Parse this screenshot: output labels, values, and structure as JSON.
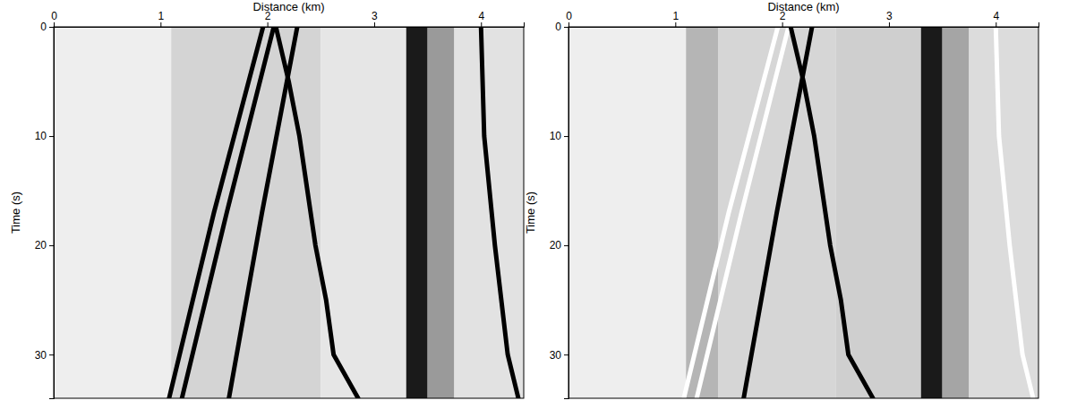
{
  "chart_data": [
    {
      "type": "image",
      "x_label": "Distance (km)",
      "y_label": "Time (s)",
      "xlim": [
        0,
        4.4
      ],
      "ylim": [
        34,
        0
      ],
      "xticks": [
        0,
        1,
        2,
        3,
        4
      ],
      "yticks": [
        0,
        10,
        20,
        30
      ],
      "bands": [
        {
          "x0": 0,
          "x1": 1.1,
          "color": "#eeeeee"
        },
        {
          "x0": 1.1,
          "x1": 2.5,
          "color": "#d4d4d4"
        },
        {
          "x0": 2.5,
          "x1": 3.3,
          "color": "#e6e6e6"
        },
        {
          "x0": 3.3,
          "x1": 3.5,
          "color": "#1a1a1a"
        },
        {
          "x0": 3.5,
          "x1": 3.75,
          "color": "#9a9a9a"
        },
        {
          "x0": 3.75,
          "x1": 4.4,
          "color": "#e2e2e2"
        }
      ],
      "series": [
        {
          "color": "#000000",
          "x": [
            1.96,
            1.5,
            1.08
          ],
          "values": [
            0,
            17,
            34
          ]
        },
        {
          "color": "#000000",
          "x": [
            2.06,
            1.62,
            1.2
          ],
          "values": [
            0,
            17,
            34
          ]
        },
        {
          "color": "#000000",
          "x": [
            2.28,
            1.95,
            1.64
          ],
          "values": [
            0,
            17,
            34
          ]
        },
        {
          "color": "#000000",
          "x": [
            2.08,
            2.2,
            2.3,
            2.45,
            2.55,
            2.62,
            2.85
          ],
          "values": [
            0,
            5,
            10,
            20,
            25,
            30,
            34
          ]
        },
        {
          "color": "#000000",
          "x": [
            4.0,
            4.03,
            4.13,
            4.25,
            4.35
          ],
          "values": [
            0,
            10,
            20,
            30,
            34
          ]
        }
      ]
    },
    {
      "type": "image",
      "x_label": "Distance (km)",
      "y_label": "Time (s)",
      "xlim": [
        0,
        4.4
      ],
      "ylim": [
        34,
        0
      ],
      "xticks": [
        0,
        1,
        2,
        3,
        4
      ],
      "yticks": [
        0,
        10,
        20,
        30
      ],
      "bands": [
        {
          "x0": 0,
          "x1": 1.1,
          "color": "#eeeeee"
        },
        {
          "x0": 1.1,
          "x1": 1.4,
          "color": "#b5b5b5"
        },
        {
          "x0": 1.4,
          "x1": 2.5,
          "color": "#d6d6d6"
        },
        {
          "x0": 2.5,
          "x1": 3.3,
          "color": "#cfcfcf"
        },
        {
          "x0": 3.3,
          "x1": 3.5,
          "color": "#1a1a1a"
        },
        {
          "x0": 3.5,
          "x1": 3.75,
          "color": "#a5a5a5"
        },
        {
          "x0": 3.75,
          "x1": 4.4,
          "color": "#dcdcdc"
        }
      ],
      "series": [
        {
          "color": "#ffffff",
          "x": [
            1.96,
            1.5,
            1.08
          ],
          "values": [
            0,
            17,
            34
          ]
        },
        {
          "color": "#ffffff",
          "x": [
            2.06,
            1.62,
            1.2
          ],
          "values": [
            0,
            17,
            34
          ]
        },
        {
          "color": "#000000",
          "x": [
            2.28,
            1.95,
            1.64
          ],
          "values": [
            0,
            17,
            34
          ]
        },
        {
          "color": "#000000",
          "x": [
            2.08,
            2.2,
            2.3,
            2.45,
            2.55,
            2.62,
            2.85
          ],
          "values": [
            0,
            5,
            10,
            20,
            25,
            30,
            34
          ]
        },
        {
          "color": "#ffffff",
          "x": [
            4.0,
            4.03,
            4.13,
            4.25,
            4.35
          ],
          "values": [
            0,
            10,
            20,
            30,
            34
          ]
        }
      ]
    }
  ]
}
